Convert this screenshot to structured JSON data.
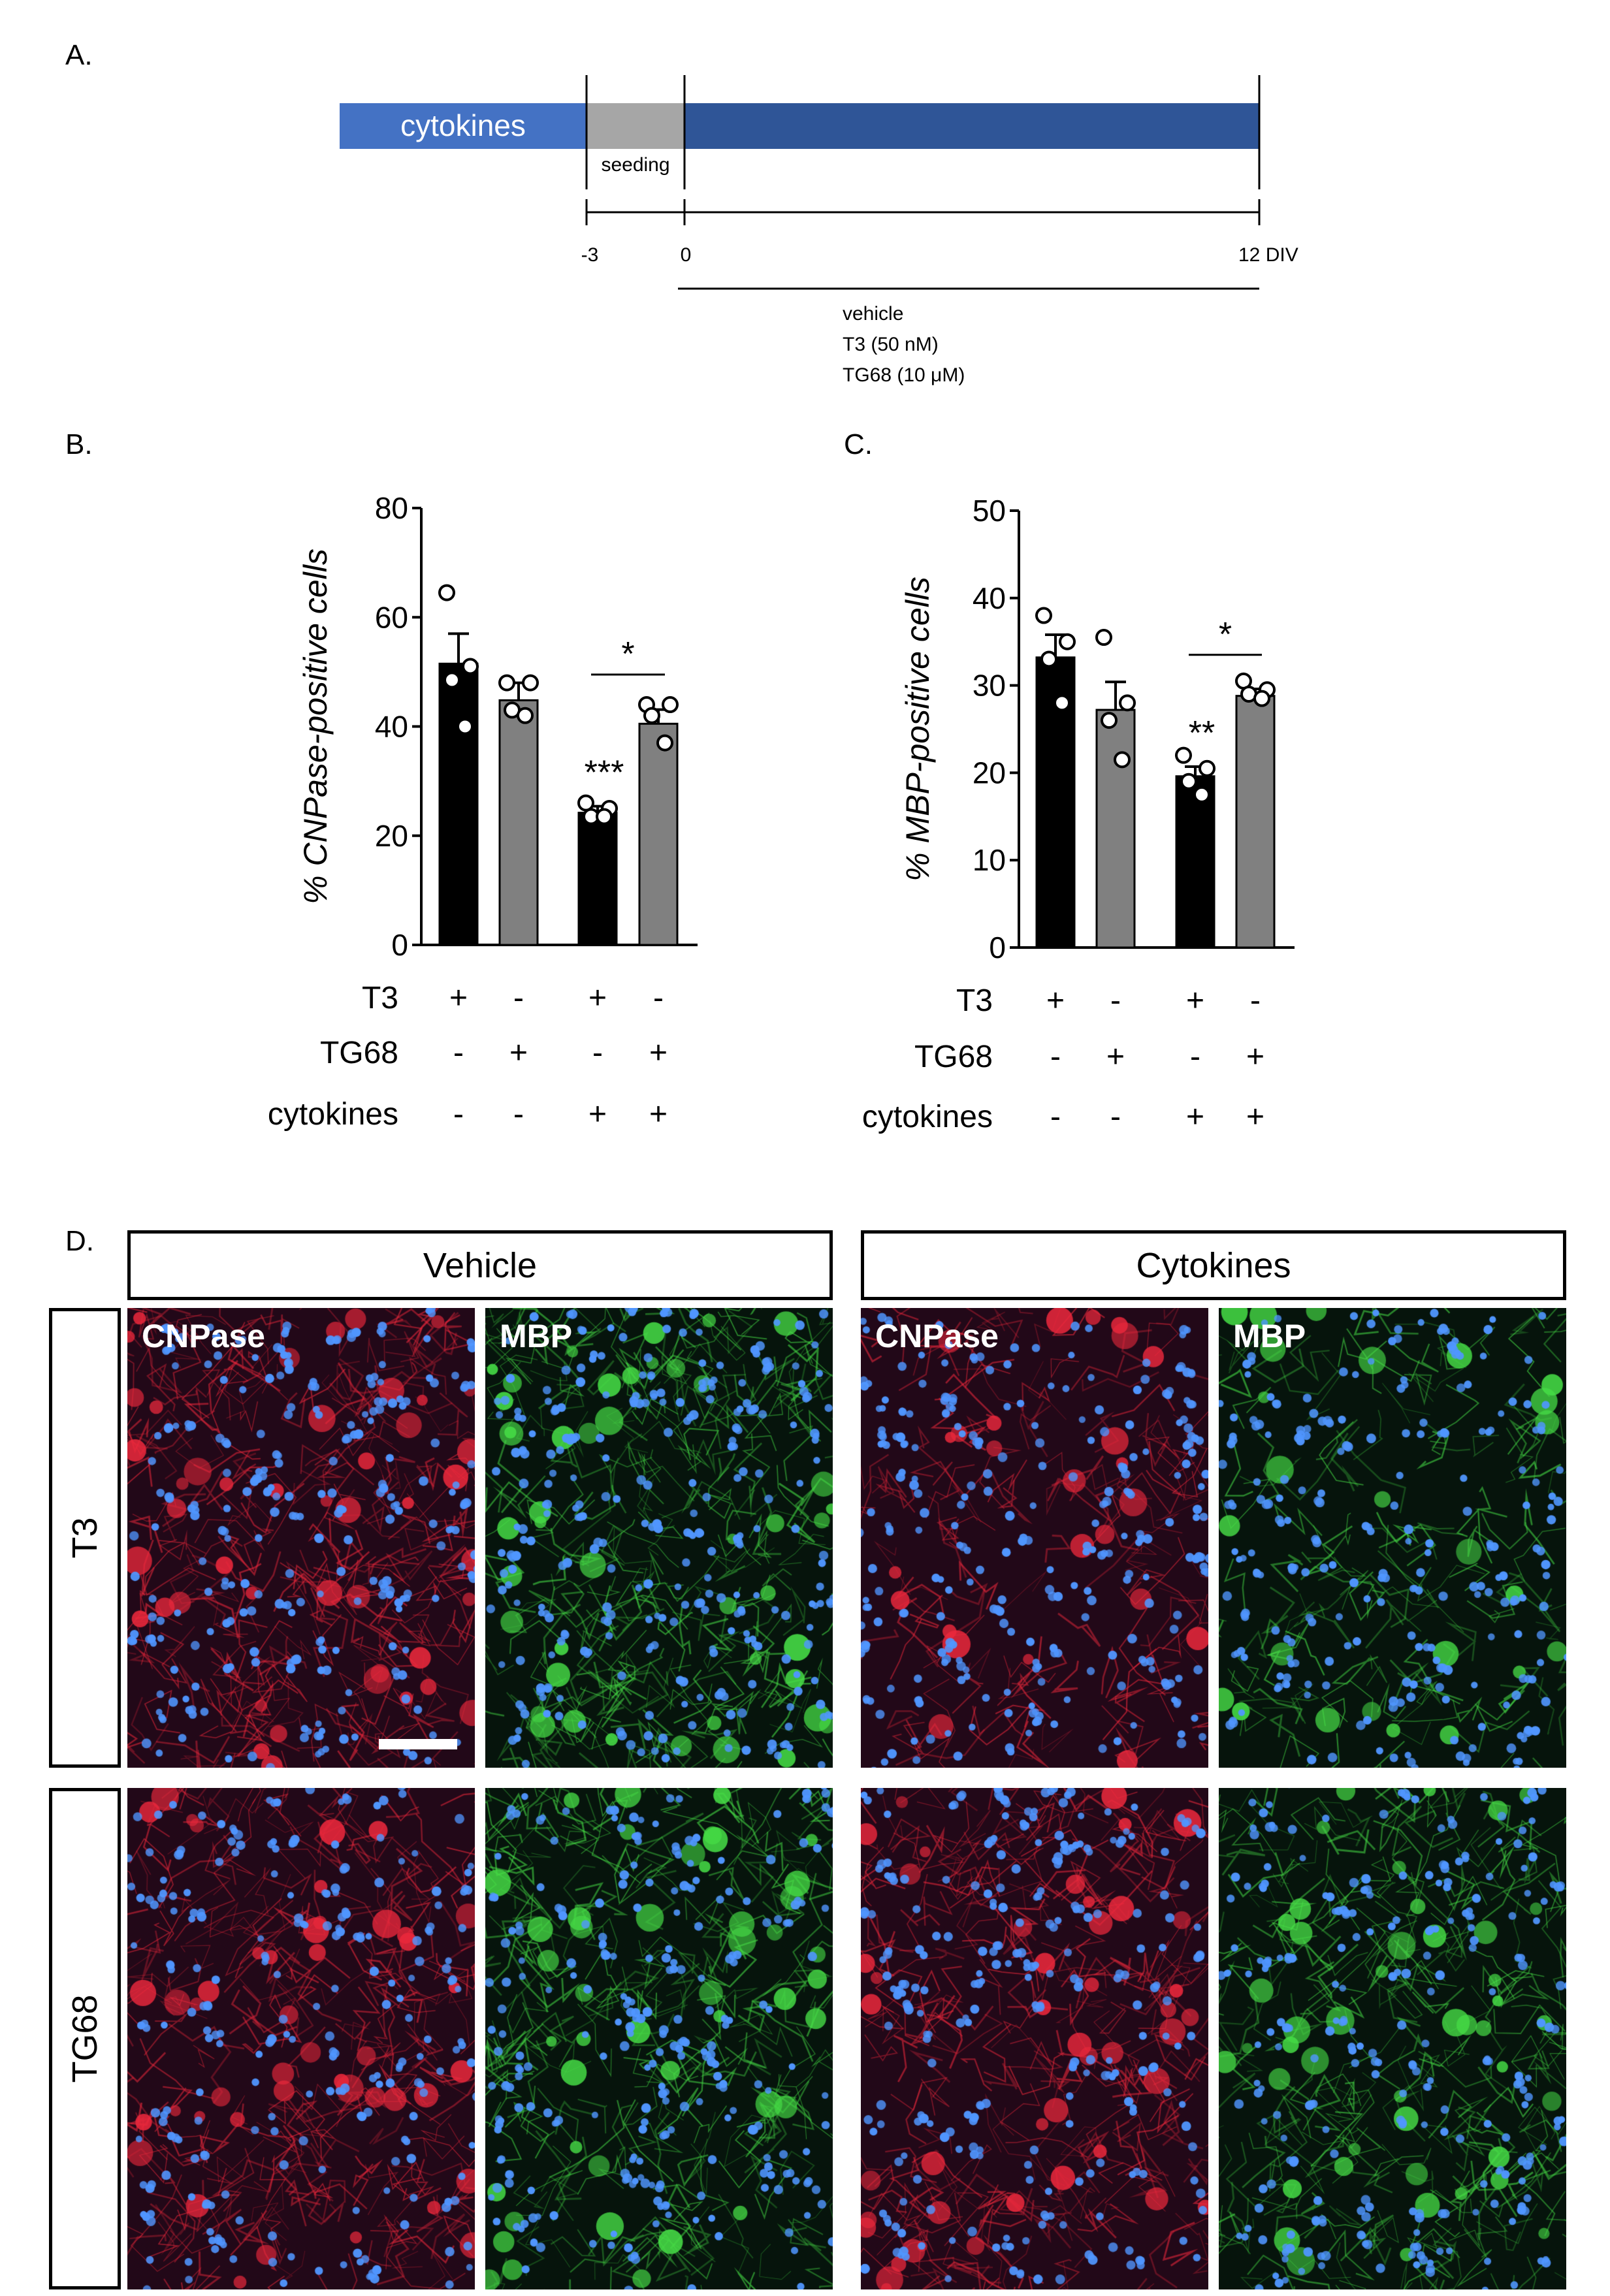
{
  "panels": {
    "a": "A.",
    "b": "B.",
    "c": "C.",
    "d": "D."
  },
  "timeline": {
    "cytokines_label": "cytokines",
    "seeding_label": "seeding",
    "ticks": [
      "-3",
      "0",
      "12 DIV"
    ],
    "treatments": [
      "vehicle",
      "T3 (50 nM)",
      "TG68 (10 μM)"
    ],
    "colors": {
      "cytokines": "#4472c4",
      "seeding": "#a6a6a6",
      "culture": "#2f5597"
    }
  },
  "treatment_table": {
    "rows": [
      {
        "label": "T3",
        "values": [
          "+",
          "-",
          "+",
          "-"
        ]
      },
      {
        "label": "TG68",
        "values": [
          "-",
          "+",
          "-",
          "+"
        ]
      },
      {
        "label": "cytokines",
        "values": [
          "-",
          "-",
          "+",
          "+"
        ]
      }
    ]
  },
  "chart_data": [
    {
      "type": "bar",
      "ylabel": "% CNPase-positive cells",
      "ylim": [
        0,
        80
      ],
      "yticks": [
        "0",
        "20",
        "40",
        "60",
        "80"
      ],
      "categories": [
        "T3",
        "TG68",
        "T3 + cytokines",
        "TG68 + cytokines"
      ],
      "values": [
        51.5,
        44.8,
        24.2,
        40.5
      ],
      "errors": [
        5.5,
        3.2,
        1.2,
        2.6
      ],
      "points": [
        [
          64.5,
          51.0,
          48.5,
          40.0
        ],
        [
          48.0,
          48.0,
          43.0,
          42.0
        ],
        [
          26.0,
          25.0,
          23.5,
          23.5
        ],
        [
          44.0,
          44.0,
          42.0,
          37.0
        ]
      ],
      "bar_colors": [
        "#000000",
        "#808080",
        "#000000",
        "#808080"
      ],
      "annotations": {
        "bar3": "***",
        "bracket": "*"
      }
    },
    {
      "type": "bar",
      "ylabel": "% MBP-positive cells",
      "ylim": [
        0,
        50
      ],
      "yticks": [
        "0",
        "10",
        "20",
        "30",
        "40",
        "50"
      ],
      "categories": [
        "T3",
        "TG68",
        "T3 + cytokines",
        "TG68 + cytokines"
      ],
      "values": [
        33.2,
        27.2,
        19.6,
        28.8
      ],
      "errors": [
        2.6,
        3.2,
        1.1,
        0.8
      ],
      "points": [
        [
          38.0,
          35.0,
          33.0,
          28.0
        ],
        [
          35.5,
          28.0,
          26.0,
          21.5
        ],
        [
          22.0,
          20.5,
          19.0,
          17.5
        ],
        [
          30.5,
          29.5,
          29.0,
          28.5
        ]
      ],
      "bar_colors": [
        "#000000",
        "#808080",
        "#000000",
        "#808080"
      ],
      "annotations": {
        "bar3": "**",
        "bracket": "*"
      }
    }
  ],
  "micrographs": {
    "conditions": [
      "Vehicle",
      "Cytokines"
    ],
    "rows": [
      "T3",
      "TG68"
    ],
    "stain_labels": {
      "cnpase": "CNPase",
      "mbp": "MBP"
    }
  }
}
